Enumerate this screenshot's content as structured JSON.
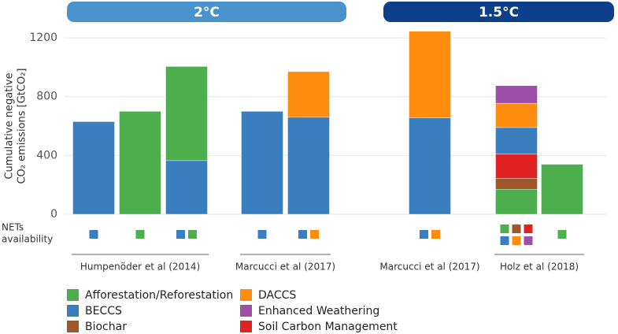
{
  "chart_data": {
    "type": "stacked_bar",
    "ylabel": [
      "Cumulative negative",
      "CO₂ emissions [GtCO₂]"
    ],
    "ylim": [
      0,
      1270
    ],
    "yticks": [
      0,
      400,
      800,
      1200
    ],
    "grid": true,
    "nets_label": [
      "NETs",
      "availability"
    ],
    "legend": [
      {
        "name": "Afforestation/Reforestation",
        "color": "#4cae4c"
      },
      {
        "name": "BECCS",
        "color": "#3a7ebf"
      },
      {
        "name": "Biochar",
        "color": "#a0572a"
      },
      {
        "name": "DACCS",
        "color": "#ff8c0f"
      },
      {
        "name": "Enhanced Weathering",
        "color": "#9b4fa8"
      },
      {
        "name": "Soil Carbon Management",
        "color": "#e02222"
      }
    ],
    "panels": [
      {
        "title": "2°C",
        "color": "#4a92cc",
        "groups": [
          {
            "label": "Humpenöder et al (2014)",
            "bars": [
              {
                "segments": [
                  {
                    "name": "BECCS",
                    "value": 630
                  }
                ],
                "nets": [
                  "BECCS"
                ]
              },
              {
                "segments": [
                  {
                    "name": "Afforestation/Reforestation",
                    "value": 700
                  }
                ],
                "nets": [
                  "Afforestation/Reforestation"
                ]
              },
              {
                "segments": [
                  {
                    "name": "BECCS",
                    "value": 365
                  },
                  {
                    "name": "Afforestation/Reforestation",
                    "value": 640
                  }
                ],
                "nets": [
                  "BECCS",
                  "Afforestation/Reforestation"
                ]
              }
            ]
          },
          {
            "label": "Marcucci et al (2017)",
            "bars": [
              {
                "segments": [
                  {
                    "name": "BECCS",
                    "value": 700
                  }
                ],
                "nets": [
                  "BECCS"
                ]
              },
              {
                "segments": [
                  {
                    "name": "BECCS",
                    "value": 660
                  },
                  {
                    "name": "DACCS",
                    "value": 310
                  }
                ],
                "nets": [
                  "BECCS",
                  "DACCS"
                ]
              }
            ]
          }
        ]
      },
      {
        "title": "1.5°C",
        "color": "#0d3f8a",
        "groups": [
          {
            "label": "Marcucci et al (2017)",
            "bars": [
              {
                "segments": [
                  {
                    "name": "BECCS",
                    "value": 655
                  },
                  {
                    "name": "DACCS",
                    "value": 590
                  }
                ],
                "nets": [
                  "BECCS",
                  "DACCS"
                ]
              }
            ]
          },
          {
            "label": "Holz et al (2018)",
            "bars": [
              {
                "segments": [
                  {
                    "name": "Afforestation/Reforestation",
                    "value": 170
                  },
                  {
                    "name": "Biochar",
                    "value": 75
                  },
                  {
                    "name": "Soil Carbon Management",
                    "value": 165
                  },
                  {
                    "name": "BECCS",
                    "value": 180
                  },
                  {
                    "name": "DACCS",
                    "value": 165
                  },
                  {
                    "name": "Enhanced Weathering",
                    "value": 120
                  }
                ],
                "nets": [
                  "Afforestation/Reforestation",
                  "Biochar",
                  "Soil Carbon Management",
                  "BECCS",
                  "DACCS",
                  "Enhanced Weathering"
                ]
              },
              {
                "segments": [
                  {
                    "name": "Afforestation/Reforestation",
                    "value": 340
                  }
                ],
                "nets": [
                  "Afforestation/Reforestation"
                ]
              }
            ]
          }
        ]
      }
    ]
  }
}
